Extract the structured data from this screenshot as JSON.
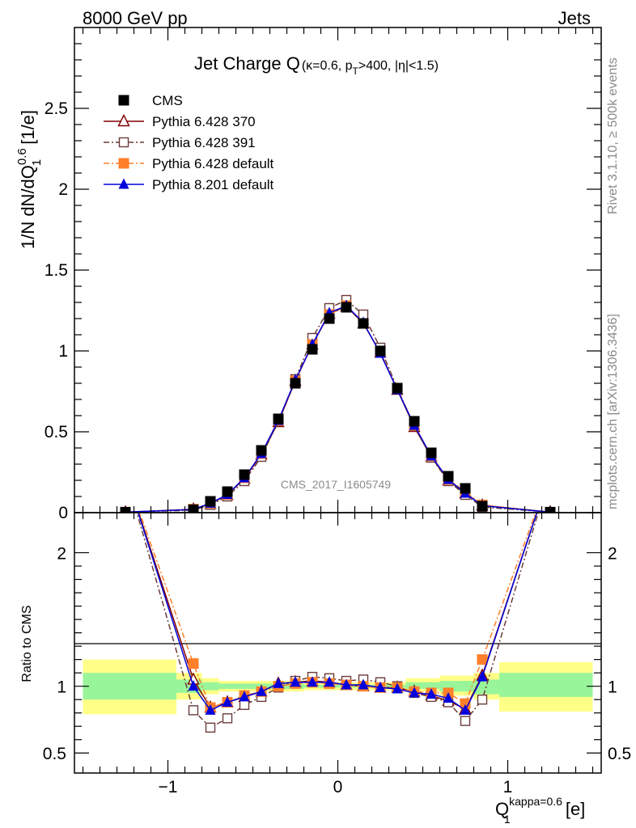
{
  "header": {
    "left": "8000 GeV pp",
    "right": "Jets"
  },
  "side_text": {
    "rivet": "Rivet 3.1.10, ≥ 500k events",
    "mcplots": "mcplots.cern.ch [arXiv:1306.3436]"
  },
  "watermark": "CMS_2017_I1605749",
  "title": {
    "main": "Jet Charge Q",
    "sub_kappa": "(κ=0.6, p",
    "sub_T": "T",
    "sub_rest": ">400, |η|<1.5)"
  },
  "axes": {
    "y_main_label": "1/N dN/dQ",
    "y_main_label_sup": "0.6",
    "y_main_label_sub": "1",
    "y_main_label_unit": " [1/e]",
    "y_ratio_label": "Ratio to CMS",
    "x_label": "Q",
    "x_label_sup": "kappa=0.6",
    "x_label_sub": "1",
    "x_label_unit": " [e]"
  },
  "legend": [
    {
      "name": "CMS",
      "color": "#000000",
      "marker": "square-filled",
      "dash": ""
    },
    {
      "name": "Pythia 6.428 370",
      "color": "#800000",
      "marker": "triangle-open",
      "dash": ""
    },
    {
      "name": "Pythia 6.428 391",
      "color": "#6b3b3b",
      "marker": "square-open",
      "dash": "7,3,2,3"
    },
    {
      "name": "Pythia 6.428 default",
      "color": "#ff7f2a",
      "marker": "square-filled",
      "dash": "7,3,2,3"
    },
    {
      "name": "Pythia 8.201 default",
      "color": "#0000dd",
      "marker": "triangle-filled",
      "dash": ""
    }
  ],
  "chart_data": {
    "type": "line",
    "xlim": [
      -1.55,
      1.55
    ],
    "ylim_main": [
      0,
      3.0
    ],
    "ylim_ratio": [
      0.35,
      2.3
    ],
    "x_ticks": [
      -1,
      0,
      1
    ],
    "x_tick_labels": [
      "−1",
      "0",
      "1"
    ],
    "y_main_ticks": [
      0,
      0.5,
      1,
      1.5,
      2,
      2.5
    ],
    "y_main_tick_labels": [
      "0",
      "0.5",
      "1",
      "1.5",
      "2",
      "2.5"
    ],
    "y_ratio_ticks": [
      0.5,
      1,
      2
    ],
    "y_ratio_tick_labels": [
      "0.5",
      "1",
      "2"
    ],
    "x": [
      -1.25,
      -0.85,
      -0.75,
      -0.65,
      -0.55,
      -0.45,
      -0.35,
      -0.25,
      -0.15,
      -0.05,
      0.05,
      0.15,
      0.25,
      0.35,
      0.45,
      0.55,
      0.65,
      0.75,
      0.85,
      1.25
    ],
    "series": [
      {
        "name": "CMS",
        "values": [
          0.003,
          0.018,
          0.07,
          0.13,
          0.235,
          0.385,
          0.58,
          0.8,
          1.01,
          1.2,
          1.27,
          1.17,
          1.0,
          0.77,
          0.565,
          0.37,
          0.225,
          0.15,
          0.04,
          0.003
        ]
      },
      {
        "name": "Pythia 6.428 370",
        "values": [
          0.003,
          0.02,
          0.055,
          0.11,
          0.21,
          0.36,
          0.56,
          0.815,
          1.04,
          1.23,
          1.275,
          1.17,
          0.99,
          0.76,
          0.53,
          0.345,
          0.2,
          0.12,
          0.045,
          0.003
        ]
      },
      {
        "name": "Pythia 6.428 391",
        "values": [
          0.003,
          0.015,
          0.048,
          0.1,
          0.195,
          0.345,
          0.565,
          0.825,
          1.08,
          1.265,
          1.315,
          1.225,
          1.02,
          0.77,
          0.535,
          0.34,
          0.195,
          0.11,
          0.035,
          0.003
        ]
      },
      {
        "name": "Pythia 6.428 default",
        "values": [
          0.003,
          0.022,
          0.058,
          0.112,
          0.215,
          0.365,
          0.57,
          0.815,
          1.04,
          1.225,
          1.28,
          1.17,
          0.99,
          0.765,
          0.54,
          0.35,
          0.205,
          0.13,
          0.048,
          0.003
        ]
      },
      {
        "name": "Pythia 8.201 default",
        "values": [
          0.003,
          0.02,
          0.058,
          0.112,
          0.215,
          0.365,
          0.57,
          0.82,
          1.04,
          1.235,
          1.28,
          1.175,
          0.985,
          0.76,
          0.54,
          0.35,
          0.205,
          0.12,
          0.043,
          0.003
        ]
      }
    ],
    "ratio_series": [
      {
        "name": "Pythia 6.428 370",
        "values": [
          2.6,
          1.05,
          0.84,
          0.88,
          0.92,
          0.96,
          1.02,
          1.03,
          1.04,
          1.03,
          1.01,
          1.0,
          0.99,
          0.99,
          0.96,
          0.93,
          0.89,
          0.83,
          1.08,
          2.6
        ]
      },
      {
        "name": "Pythia 6.428 391",
        "values": [
          2.6,
          0.82,
          0.69,
          0.76,
          0.86,
          0.92,
          0.99,
          1.04,
          1.07,
          1.06,
          1.04,
          1.05,
          1.03,
          1.0,
          0.95,
          0.92,
          0.88,
          0.74,
          0.9,
          2.6
        ]
      },
      {
        "name": "Pythia 6.428 default",
        "values": [
          2.6,
          1.17,
          0.84,
          0.88,
          0.93,
          0.96,
          1.0,
          1.02,
          1.03,
          1.02,
          1.01,
          1.0,
          0.99,
          0.99,
          0.96,
          0.95,
          0.95,
          0.87,
          1.2,
          2.6
        ]
      },
      {
        "name": "Pythia 8.201 default",
        "values": [
          2.6,
          1.0,
          0.82,
          0.88,
          0.92,
          0.96,
          1.02,
          1.03,
          1.03,
          1.03,
          1.01,
          1.01,
          0.99,
          0.98,
          0.95,
          0.94,
          0.91,
          0.82,
          1.07,
          2.6
        ]
      }
    ],
    "ratio_bands": [
      {
        "x0": -1.5,
        "x1": -0.95,
        "y68": [
          0.9,
          1.1
        ],
        "y95": [
          0.79,
          1.2
        ]
      },
      {
        "x0": -0.95,
        "x1": -0.8,
        "y68": [
          0.95,
          1.05
        ],
        "y95": [
          0.9,
          1.1
        ]
      },
      {
        "x0": -0.8,
        "x1": -0.7,
        "y68": [
          0.97,
          1.03
        ],
        "y95": [
          0.94,
          1.06
        ]
      },
      {
        "x0": -0.7,
        "x1": -0.2,
        "y68": [
          0.98,
          1.02
        ],
        "y95": [
          0.96,
          1.04
        ]
      },
      {
        "x0": -0.2,
        "x1": 0.4,
        "y68": [
          0.99,
          1.01
        ],
        "y95": [
          0.97,
          1.03
        ]
      },
      {
        "x0": 0.4,
        "x1": 0.6,
        "y68": [
          0.98,
          1.03
        ],
        "y95": [
          0.96,
          1.06
        ]
      },
      {
        "x0": 0.6,
        "x1": 0.8,
        "y68": [
          0.96,
          1.04
        ],
        "y95": [
          0.93,
          1.08
        ]
      },
      {
        "x0": 0.8,
        "x1": 0.95,
        "y68": [
          0.94,
          1.05
        ],
        "y95": [
          0.9,
          1.1
        ]
      },
      {
        "x0": 0.95,
        "x1": 1.5,
        "y68": [
          0.92,
          1.1
        ],
        "y95": [
          0.81,
          1.18
        ]
      }
    ]
  }
}
